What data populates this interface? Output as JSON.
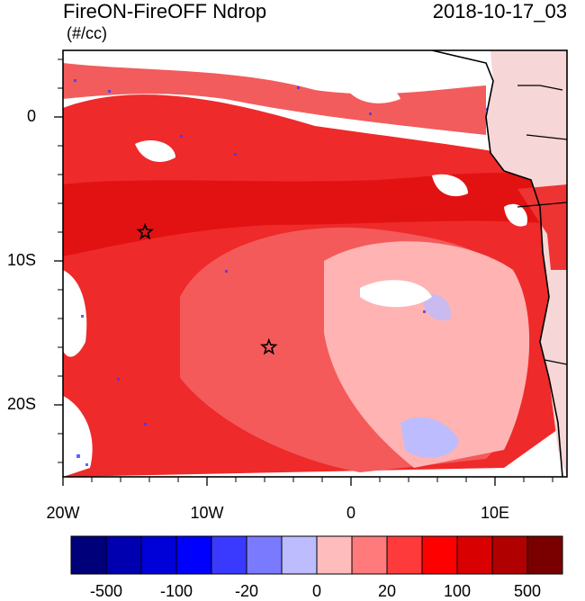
{
  "header": {
    "title": "FireON-FireOFF Ndrop",
    "date": "2018-10-17_03",
    "units": "(#/cc)"
  },
  "axes": {
    "y_ticks": [
      "0",
      "10S",
      "20S"
    ],
    "x_ticks": [
      "20W",
      "10W",
      "0",
      "10E"
    ]
  },
  "colorbar": {
    "colors": [
      "#00007a",
      "#0000b0",
      "#0000d8",
      "#0000ff",
      "#3a3aff",
      "#7a7aff",
      "#bcbcff",
      "#ffbcbc",
      "#ff7a7a",
      "#ff3a3a",
      "#ff0000",
      "#d80000",
      "#b00000",
      "#7a0000"
    ],
    "labels": [
      "-500",
      "-100",
      "-20",
      "0",
      "20",
      "100",
      "500"
    ]
  },
  "markers": [
    {
      "symbol": "star",
      "lon": -14.3,
      "lat": -8.0
    },
    {
      "symbol": "star",
      "lon": -5.7,
      "lat": -16.0
    }
  ]
}
